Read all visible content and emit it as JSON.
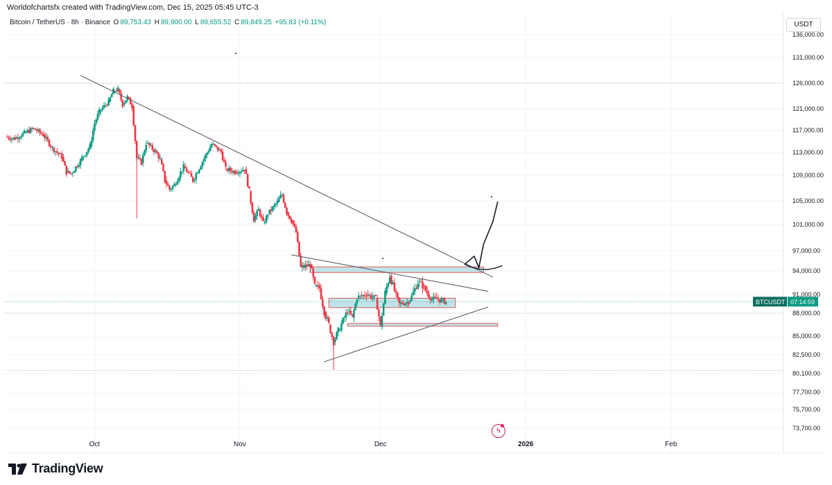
{
  "header": {
    "credit": "Worldofchartsfx created with TradingView.com, Dec 15, 2025 05:45 UTC-3"
  },
  "symbol": {
    "name": "Bitcoin / TetherUS · 8h · Binance",
    "open_label": "O",
    "open": "89,753.43",
    "high_label": "H",
    "high": "89,900.00",
    "low_label": "L",
    "low": "89,655.52",
    "close_label": "C",
    "close": "89,849.25",
    "change": "+95.83 (+0.11%)"
  },
  "currency_button": "USDT",
  "price_tag": {
    "symbol": "BTCUSDT",
    "countdown": "07:14:59"
  },
  "brand": {
    "logo_text": "TradingView"
  },
  "colors": {
    "up": "#089981",
    "down": "#f23645",
    "zone_fill": "#a8d8e0",
    "zone_border": "#e05a5a",
    "grid": "#f0f3fa",
    "line": "#5d606b"
  },
  "chart_data": {
    "type": "candlestick",
    "y_ticks": [
      "136,000.00",
      "131,000.00",
      "126,000.00",
      "121,000.00",
      "117,000.00",
      "113,000.00",
      "109,000.00",
      "105,000.00",
      "101,000.00",
      "97,000.00",
      "94,000.00",
      "91,000.00",
      "88,000.00",
      "85,000.00",
      "82,500.00",
      "80,100.00",
      "77,700.00",
      "75,700.00",
      "73,700.00"
    ],
    "x_ticks": [
      "Oct",
      "Nov",
      "Dec",
      "2026",
      "Feb"
    ],
    "x_tick_dates": [
      "2025-10-01",
      "2025-11-01",
      "2025-12-01",
      "2026-01-01",
      "2026-02-01"
    ],
    "ylim": [
      73000,
      137000
    ],
    "xlim": [
      "2025-09-12",
      "2026-02-25"
    ],
    "last_price": 89849.25,
    "dotted_levels": [
      126000,
      88000,
      80500
    ],
    "trendlines": [
      {
        "from": [
          "2025-09-28",
          127500
        ],
        "to": [
          "2025-12-25",
          93200
        ]
      },
      {
        "from": [
          "2025-11-12",
          96400
        ],
        "to": [
          "2025-12-24",
          91400
        ]
      },
      {
        "from": [
          "2025-11-19",
          81600
        ],
        "to": [
          "2025-12-24",
          89000
        ]
      }
    ],
    "zones": [
      {
        "x": [
          "2025-11-16",
          "2025-12-23"
        ],
        "y": [
          93800,
          94600
        ]
      },
      {
        "x": [
          "2025-11-20",
          "2025-12-17"
        ],
        "y": [
          88900,
          90400
        ]
      },
      {
        "x": [
          "2025-11-24",
          "2025-12-26"
        ],
        "y": [
          86300,
          86650
        ]
      }
    ],
    "projection": [
      [
        "2025-12-19",
        95000
      ],
      [
        "2025-12-21",
        96200
      ],
      [
        "2025-12-22",
        94500
      ],
      [
        "2025-12-23",
        98000
      ],
      [
        "2025-12-25",
        101500
      ],
      [
        "2025-12-26",
        104800
      ]
    ],
    "price_points": [
      [
        "2025-09-12",
        115800
      ],
      [
        "2025-09-14",
        115500
      ],
      [
        "2025-09-16",
        116500
      ],
      [
        "2025-09-18",
        117300
      ],
      [
        "2025-09-20",
        116200
      ],
      [
        "2025-09-22",
        113800
      ],
      [
        "2025-09-24",
        112200
      ],
      [
        "2025-09-25",
        109500
      ],
      [
        "2025-09-26",
        109300
      ],
      [
        "2025-09-28",
        111600
      ],
      [
        "2025-09-30",
        114100
      ],
      [
        "2025-10-01",
        118300
      ],
      [
        "2025-10-02",
        120500
      ],
      [
        "2025-10-04",
        122400
      ],
      [
        "2025-10-05",
        124500
      ],
      [
        "2025-10-06",
        124800
      ],
      [
        "2025-10-07",
        121800
      ],
      [
        "2025-10-08",
        123300
      ],
      [
        "2025-10-09",
        121500
      ],
      [
        "2025-10-10",
        112000
      ],
      [
        "2025-10-11",
        111200
      ],
      [
        "2025-10-12",
        114700
      ],
      [
        "2025-10-14",
        113200
      ],
      [
        "2025-10-15",
        111800
      ],
      [
        "2025-10-16",
        108200
      ],
      [
        "2025-10-17",
        106800
      ],
      [
        "2025-10-18",
        107500
      ],
      [
        "2025-10-20",
        110500
      ],
      [
        "2025-10-22",
        108200
      ],
      [
        "2025-10-24",
        111400
      ],
      [
        "2025-10-26",
        114500
      ],
      [
        "2025-10-28",
        113100
      ],
      [
        "2025-10-29",
        110100
      ],
      [
        "2025-10-31",
        109600
      ],
      [
        "2025-11-02",
        110100
      ],
      [
        "2025-11-03",
        106500
      ],
      [
        "2025-11-04",
        101800
      ],
      [
        "2025-11-05",
        103500
      ],
      [
        "2025-11-06",
        101200
      ],
      [
        "2025-11-07",
        102800
      ],
      [
        "2025-11-09",
        104800
      ],
      [
        "2025-11-10",
        106000
      ],
      [
        "2025-11-11",
        103100
      ],
      [
        "2025-11-12",
        101700
      ],
      [
        "2025-11-13",
        99800
      ],
      [
        "2025-11-14",
        94500
      ],
      [
        "2025-11-16",
        94900
      ],
      [
        "2025-11-17",
        92000
      ],
      [
        "2025-11-18",
        91800
      ],
      [
        "2025-11-19",
        88200
      ],
      [
        "2025-11-20",
        86500
      ],
      [
        "2025-11-21",
        84200
      ],
      [
        "2025-11-22",
        85700
      ],
      [
        "2025-11-24",
        88300
      ],
      [
        "2025-11-25",
        87400
      ],
      [
        "2025-11-26",
        90500
      ],
      [
        "2025-11-28",
        91000
      ],
      [
        "2025-11-30",
        90400
      ],
      [
        "2025-12-01",
        86200
      ],
      [
        "2025-12-02",
        91200
      ],
      [
        "2025-12-03",
        93400
      ],
      [
        "2025-12-05",
        89500
      ],
      [
        "2025-12-07",
        89800
      ],
      [
        "2025-12-09",
        92600
      ],
      [
        "2025-12-10",
        92100
      ],
      [
        "2025-12-12",
        90200
      ],
      [
        "2025-12-13",
        90300
      ],
      [
        "2025-12-15",
        89800
      ]
    ]
  }
}
